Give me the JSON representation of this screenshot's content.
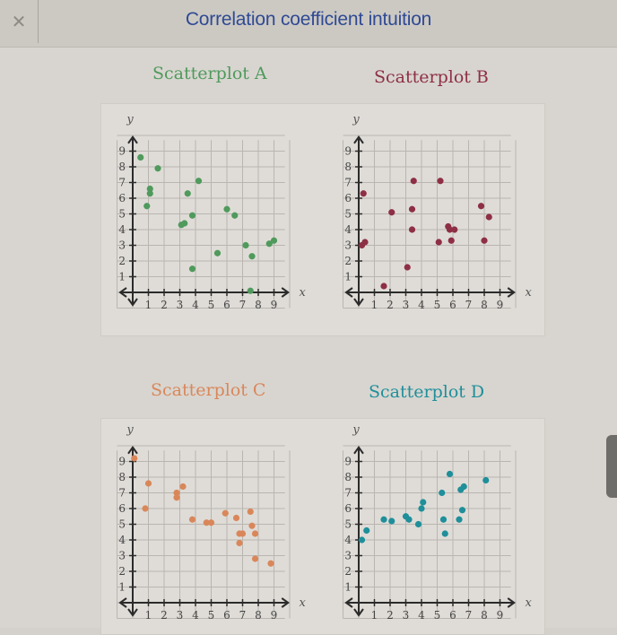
{
  "header": {
    "close_icon": "close-icon",
    "title": "Correlation coefficient intuition",
    "title_color": "#2f4a94"
  },
  "plots": [
    {
      "label": "Scatterplot A",
      "color": "#4f9a5c"
    },
    {
      "label": "Scatterplot B",
      "color": "#8e2f45"
    },
    {
      "label": "Scatterplot C",
      "color": "#d9875a"
    },
    {
      "label": "Scatterplot D",
      "color": "#1f8f9a"
    }
  ],
  "axes": {
    "x_label": "x",
    "y_label": "y",
    "ticks": [
      1,
      2,
      3,
      4,
      5,
      6,
      7,
      8,
      9
    ]
  },
  "chart_data": [
    {
      "type": "scatter",
      "title": "Scatterplot A",
      "xlabel": "x",
      "ylabel": "y",
      "xlim": [
        0,
        9
      ],
      "ylim": [
        0,
        9
      ],
      "grid": true,
      "color": "#4f9a5c",
      "points": [
        [
          0.5,
          8.6
        ],
        [
          1.6,
          7.9
        ],
        [
          1.1,
          6.6
        ],
        [
          1.1,
          6.3
        ],
        [
          0.9,
          5.5
        ],
        [
          3.5,
          6.3
        ],
        [
          4.2,
          7.1
        ],
        [
          3.1,
          4.3
        ],
        [
          3.3,
          4.4
        ],
        [
          3.8,
          4.9
        ],
        [
          3.8,
          1.5
        ],
        [
          5.4,
          2.5
        ],
        [
          6.0,
          5.3
        ],
        [
          6.5,
          4.9
        ],
        [
          7.2,
          3.0
        ],
        [
          7.6,
          2.3
        ],
        [
          7.5,
          0.1
        ],
        [
          8.7,
          3.1
        ],
        [
          9.0,
          3.3
        ]
      ]
    },
    {
      "type": "scatter",
      "title": "Scatterplot B",
      "xlabel": "x",
      "ylabel": "y",
      "xlim": [
        0,
        9
      ],
      "ylim": [
        0,
        9
      ],
      "grid": true,
      "color": "#8e2f45",
      "points": [
        [
          0.3,
          6.3
        ],
        [
          0.2,
          3.0
        ],
        [
          0.4,
          3.2
        ],
        [
          1.6,
          0.4
        ],
        [
          2.1,
          5.1
        ],
        [
          3.1,
          1.6
        ],
        [
          3.5,
          7.1
        ],
        [
          3.4,
          5.3
        ],
        [
          3.4,
          4.0
        ],
        [
          5.2,
          7.1
        ],
        [
          5.1,
          3.2
        ],
        [
          5.7,
          4.2
        ],
        [
          5.8,
          4.0
        ],
        [
          6.1,
          4.0
        ],
        [
          5.9,
          3.3
        ],
        [
          7.8,
          5.5
        ],
        [
          8.3,
          4.8
        ],
        [
          8.0,
          3.3
        ]
      ]
    },
    {
      "type": "scatter",
      "title": "Scatterplot C",
      "xlabel": "x",
      "ylabel": "y",
      "xlim": [
        0,
        9
      ],
      "ylim": [
        0,
        9
      ],
      "grid": true,
      "color": "#d9875a",
      "points": [
        [
          0.1,
          9.2
        ],
        [
          1.0,
          7.6
        ],
        [
          0.8,
          6.0
        ],
        [
          2.8,
          7.0
        ],
        [
          2.8,
          6.7
        ],
        [
          3.2,
          7.4
        ],
        [
          3.8,
          5.3
        ],
        [
          4.7,
          5.1
        ],
        [
          5.0,
          5.1
        ],
        [
          5.9,
          5.7
        ],
        [
          6.6,
          5.4
        ],
        [
          7.5,
          5.8
        ],
        [
          7.6,
          4.9
        ],
        [
          6.8,
          4.4
        ],
        [
          7.0,
          4.4
        ],
        [
          7.8,
          4.4
        ],
        [
          6.8,
          3.8
        ],
        [
          7.8,
          2.8
        ],
        [
          8.8,
          2.5
        ]
      ]
    },
    {
      "type": "scatter",
      "title": "Scatterplot D",
      "xlabel": "x",
      "ylabel": "y",
      "xlim": [
        0,
        9
      ],
      "ylim": [
        0,
        9
      ],
      "grid": true,
      "color": "#1f8f9a",
      "points": [
        [
          0.2,
          4.0
        ],
        [
          0.5,
          4.6
        ],
        [
          1.6,
          5.3
        ],
        [
          2.1,
          5.2
        ],
        [
          3.0,
          5.5
        ],
        [
          3.2,
          5.3
        ],
        [
          3.8,
          5.0
        ],
        [
          4.0,
          6.0
        ],
        [
          4.1,
          6.4
        ],
        [
          5.3,
          7.0
        ],
        [
          5.4,
          5.3
        ],
        [
          5.5,
          4.4
        ],
        [
          5.8,
          8.2
        ],
        [
          6.5,
          7.2
        ],
        [
          6.7,
          7.4
        ],
        [
          6.6,
          5.9
        ],
        [
          6.4,
          5.3
        ],
        [
          8.1,
          7.8
        ]
      ]
    }
  ]
}
